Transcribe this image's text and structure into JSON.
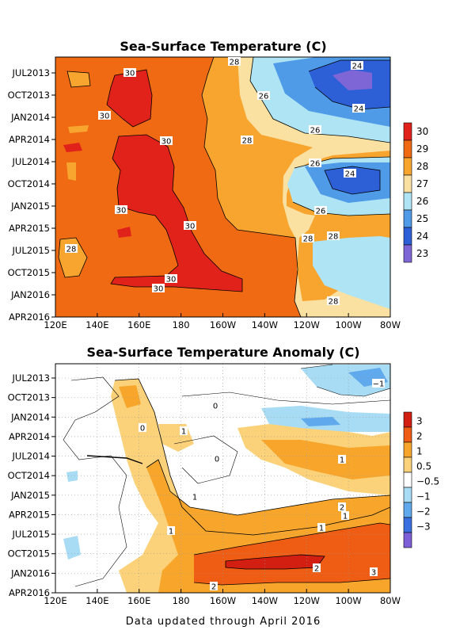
{
  "chart_data": [
    {
      "type": "heatmap",
      "title": "Sea-Surface Temperature (C)",
      "x_ticks": [
        "120E",
        "140E",
        "160E",
        "180",
        "160W",
        "140W",
        "120W",
        "100W",
        "80W"
      ],
      "y_ticks": [
        "JUL2013",
        "OCT2013",
        "JAN2014",
        "APR2014",
        "JUL2014",
        "OCT2014",
        "JAN2015",
        "APR2015",
        "JUL2015",
        "OCT2015",
        "JAN2016",
        "APR2016"
      ],
      "colorbar": {
        "labels": [
          "30",
          "29",
          "28",
          "27",
          "26",
          "25",
          "24",
          "23"
        ],
        "colors": [
          "#e0221b",
          "#f06a14",
          "#f8a530",
          "#fae1a2",
          "#aee4f4",
          "#4f9be8",
          "#2d5fd6",
          "#7f66d6"
        ]
      },
      "contour_labels": [
        "30",
        "30",
        "30",
        "30",
        "30",
        "30",
        "30",
        "28",
        "28",
        "28",
        "28",
        "28",
        "28",
        "26",
        "26",
        "26",
        "26",
        "24",
        "24",
        "24"
      ],
      "grid": false,
      "legend": "right"
    },
    {
      "type": "heatmap",
      "title": "Sea-Surface Temperature Anomaly (C)",
      "x_ticks": [
        "120E",
        "140E",
        "160E",
        "180",
        "160W",
        "140W",
        "120W",
        "100W",
        "80W"
      ],
      "y_ticks": [
        "JUL2013",
        "OCT2013",
        "JAN2014",
        "APR2014",
        "JUL2014",
        "OCT2014",
        "JAN2015",
        "APR2015",
        "JUL2015",
        "OCT2015",
        "JAN2016",
        "APR2016"
      ],
      "colorbar": {
        "labels": [
          "3",
          "2",
          "1",
          "0.5",
          "−0.5",
          "−1",
          "−2",
          "−3"
        ],
        "colors": [
          "#d21f12",
          "#ef5c14",
          "#f7a62b",
          "#fbd27a",
          "#ffffff",
          "#a7dcf4",
          "#5fa9ec",
          "#3a6fe0",
          "#7e5fd8"
        ]
      },
      "contour_labels": [
        "0",
        "0",
        "−1",
        "1",
        "1",
        "1",
        "1",
        "1",
        "1",
        "2",
        "3",
        "2",
        "2",
        "0"
      ],
      "grid": true,
      "legend": "right"
    }
  ],
  "footer": "Data updated through April 2016"
}
